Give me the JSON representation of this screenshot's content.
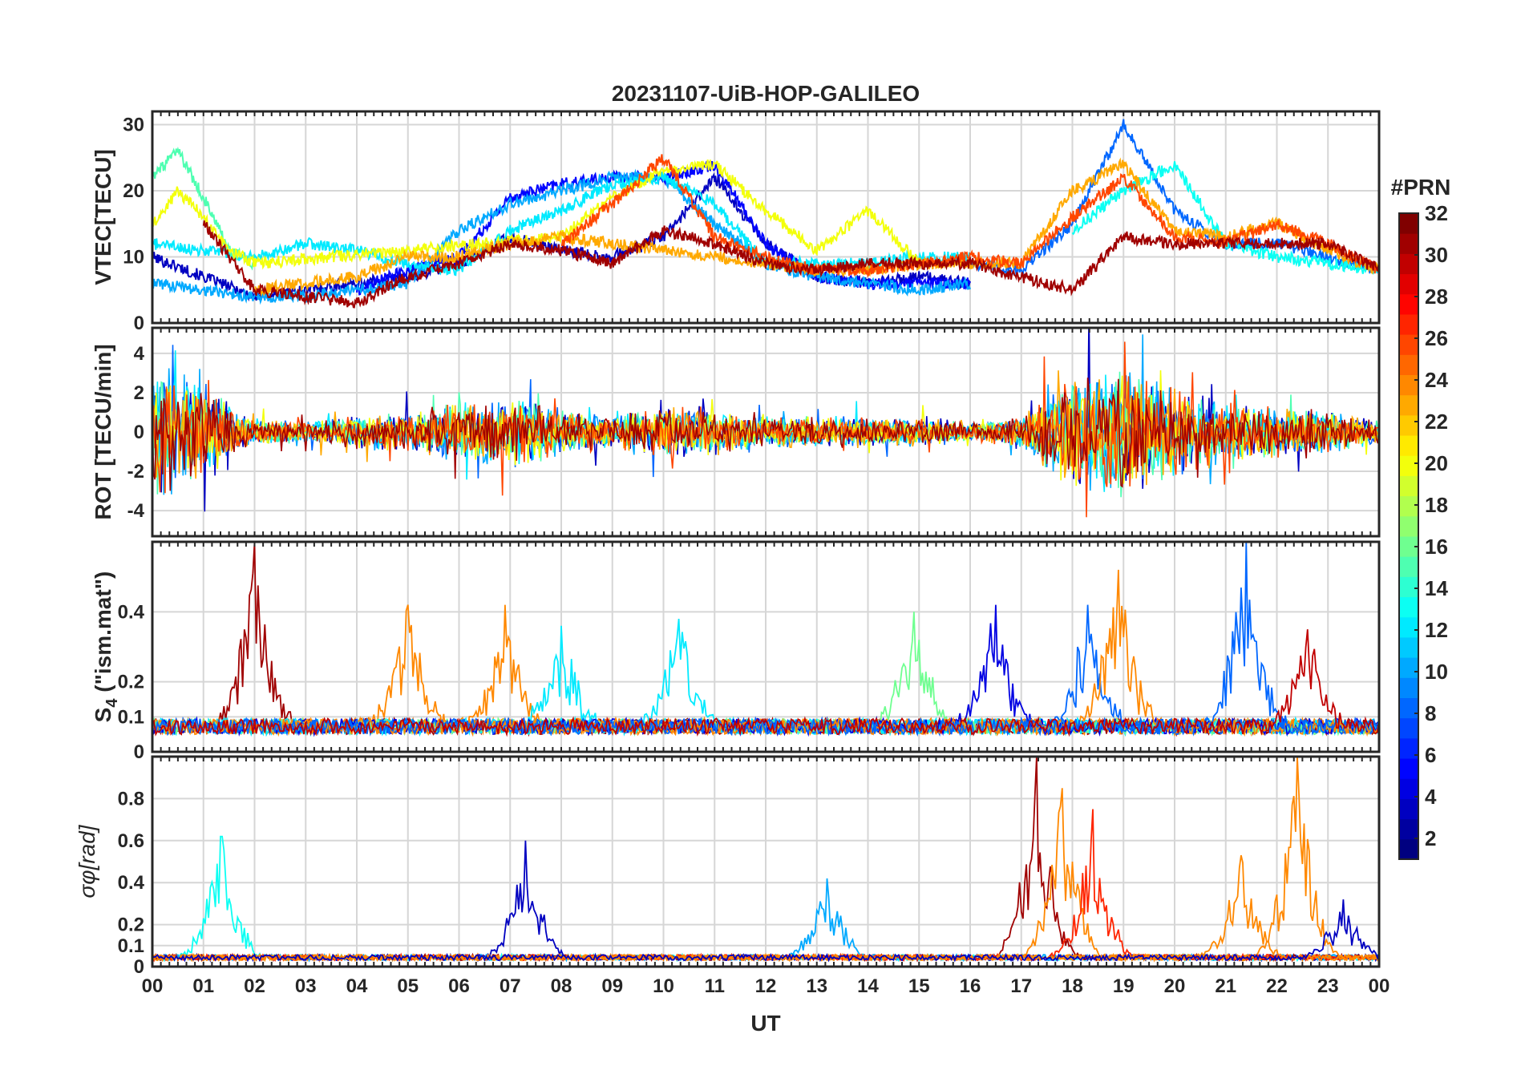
{
  "chart_data": {
    "type": "line",
    "title": "20231107-UiB-HOP-GALILEO",
    "xlabel": "UT",
    "x_tick_labels": [
      "00",
      "01",
      "02",
      "03",
      "04",
      "05",
      "06",
      "07",
      "08",
      "09",
      "10",
      "11",
      "12",
      "13",
      "14",
      "15",
      "16",
      "17",
      "18",
      "19",
      "20",
      "21",
      "22",
      "23",
      "00"
    ],
    "x_range_hours": [
      0,
      24
    ],
    "grid": true,
    "colorbar": {
      "title": "#PRN",
      "range": [
        1,
        32
      ],
      "tick_labels": [
        "2",
        "4",
        "6",
        "8",
        "10",
        "12",
        "14",
        "16",
        "18",
        "20",
        "22",
        "24",
        "26",
        "28",
        "30",
        "32"
      ],
      "colormap": "jet"
    },
    "panels": [
      {
        "id": "vtec",
        "ylabel": "VTEC[TECU]",
        "ylim": [
          0,
          32
        ],
        "yticks": [
          0,
          10,
          20,
          30
        ],
        "series": [
          {
            "prn": 3,
            "hours": [
              0,
              1,
              2,
              3,
              4,
              5,
              6,
              7,
              8,
              9,
              10,
              11,
              12,
              13,
              14,
              15,
              16
            ],
            "values": [
              10,
              7,
              4,
              5,
              6,
              7,
              9,
              13,
              11,
              10,
              13,
              22,
              12,
              7,
              6,
              7,
              6
            ]
          },
          {
            "prn": 5,
            "hours": [
              4,
              5,
              6,
              7,
              8,
              9,
              10,
              11,
              12,
              13,
              14,
              15,
              16
            ],
            "values": [
              5,
              8,
              10,
              19,
              21,
              22,
              22,
              24,
              12,
              7,
              6,
              6,
              6
            ]
          },
          {
            "prn": 8,
            "hours": [
              16,
              17,
              18,
              19,
              20,
              21,
              22,
              23,
              24
            ],
            "values": [
              9,
              8,
              15,
              30,
              17,
              12,
              12,
              10,
              8
            ]
          },
          {
            "prn": 10,
            "hours": [
              0,
              1,
              2,
              3,
              4,
              5,
              6,
              7,
              8,
              9,
              10,
              11,
              12,
              13,
              14,
              15,
              16
            ],
            "values": [
              6,
              5,
              4,
              4,
              5,
              6,
              14,
              18,
              20,
              22,
              22,
              15,
              9,
              7,
              6,
              5,
              6
            ]
          },
          {
            "prn": 12,
            "hours": [
              0,
              1,
              2,
              3,
              4,
              5,
              6,
              7,
              8,
              9,
              10,
              11,
              12,
              13,
              14,
              15,
              16
            ],
            "values": [
              12,
              11,
              10,
              12,
              11,
              9,
              8,
              14,
              17,
              21,
              22,
              18,
              9,
              9,
              9,
              10,
              10
            ]
          },
          {
            "prn": 13,
            "hours": [
              18,
              19,
              20,
              21,
              22,
              23,
              24
            ],
            "values": [
              14,
              20,
              24,
              12,
              10,
              9,
              8
            ]
          },
          {
            "prn": 15,
            "hours": [
              0,
              0.5,
              1,
              1.5,
              2
            ],
            "values": [
              22,
              26,
              19,
              11,
              9
            ]
          },
          {
            "prn": 20,
            "hours": [
              0,
              0.5,
              1,
              1.5,
              2,
              8,
              9,
              10,
              11,
              12,
              13,
              14,
              15
            ],
            "values": [
              15,
              20,
              16,
              11,
              9,
              13,
              19,
              23,
              24,
              17,
              11,
              17,
              9
            ]
          },
          {
            "prn": 23,
            "hours": [
              2,
              3,
              4,
              5,
              6,
              7,
              8,
              9,
              10,
              11,
              12,
              13,
              14,
              15,
              16,
              17,
              18,
              19,
              20,
              21,
              22,
              23,
              24
            ],
            "values": [
              5,
              6,
              7,
              10,
              10,
              12,
              13,
              12,
              11,
              10,
              9,
              8,
              8,
              9,
              9,
              9,
              20,
              24,
              14,
              13,
              15,
              11,
              8
            ]
          },
          {
            "prn": 26,
            "hours": [
              8,
              9,
              10,
              11,
              12,
              13,
              14,
              15,
              16,
              17,
              18,
              19,
              20,
              21,
              22,
              23,
              24
            ],
            "values": [
              12,
              18,
              25,
              13,
              10,
              8,
              8,
              9,
              10,
              9,
              16,
              22,
              13,
              12,
              15,
              12,
              8
            ]
          },
          {
            "prn": 31,
            "hours": [
              1,
              2,
              3,
              4,
              5,
              6,
              7,
              8,
              9,
              10,
              11,
              12,
              13,
              14,
              15,
              16,
              17,
              18,
              19,
              20,
              21,
              22,
              23,
              24
            ],
            "values": [
              15,
              5,
              4,
              3,
              7,
              9,
              12,
              11,
              9,
              14,
              12,
              9,
              8,
              9,
              9,
              9,
              7,
              5,
              13,
              12,
              12,
              12,
              12,
              8
            ]
          }
        ]
      },
      {
        "id": "rot",
        "ylabel": "ROT [TECU/min]",
        "ylim": [
          -5.3,
          5.3
        ],
        "yticks": [
          -4,
          -2,
          0,
          2,
          4
        ],
        "activity_hours": [
          0,
          1,
          2,
          3,
          4,
          5,
          6,
          7,
          8,
          9,
          10,
          11,
          12,
          13,
          14,
          15,
          16,
          17,
          18,
          19,
          20,
          21,
          22,
          23,
          24
        ],
        "activity_amplitude": [
          3.8,
          2.6,
          0.7,
          0.6,
          0.9,
          1.1,
          1.6,
          1.9,
          1.3,
          0.8,
          1.4,
          1.2,
          0.8,
          0.9,
          0.8,
          0.8,
          0.5,
          0.9,
          3.2,
          3.6,
          2.3,
          1.6,
          1.4,
          1.2,
          0.6
        ],
        "series": [
          {
            "prn": 3
          },
          {
            "prn": 8
          },
          {
            "prn": 10
          },
          {
            "prn": 12
          },
          {
            "prn": 15
          },
          {
            "prn": 20
          },
          {
            "prn": 23
          },
          {
            "prn": 26
          },
          {
            "prn": 31
          }
        ]
      },
      {
        "id": "s4",
        "ylabel": "S4 (\"ism.mat\")",
        "ylabel_main": "S",
        "ylabel_sub": "4",
        "ylabel_rest": " (\"ism.mat\")",
        "ylim": [
          0,
          0.6
        ],
        "yticks": [
          0,
          0.1,
          0.2,
          0.4
        ],
        "ytick_labels": [
          "0",
          "0.1",
          "0.2",
          "0.4"
        ],
        "peaks": [
          {
            "prn": 31,
            "hour": 2.0,
            "value": 0.6
          },
          {
            "prn": 24,
            "hour": 5.0,
            "value": 0.42
          },
          {
            "prn": 24,
            "hour": 6.9,
            "value": 0.42
          },
          {
            "prn": 12,
            "hour": 8.0,
            "value": 0.36
          },
          {
            "prn": 12,
            "hour": 10.3,
            "value": 0.38
          },
          {
            "prn": 16,
            "hour": 14.9,
            "value": 0.4
          },
          {
            "prn": 4,
            "hour": 16.5,
            "value": 0.42
          },
          {
            "prn": 8,
            "hour": 18.3,
            "value": 0.42
          },
          {
            "prn": 24,
            "hour": 18.9,
            "value": 0.52
          },
          {
            "prn": 8,
            "hour": 21.4,
            "value": 0.6
          },
          {
            "prn": 30,
            "hour": 22.6,
            "value": 0.35
          }
        ]
      },
      {
        "id": "sigma_phi",
        "ylabel": "σφ[rad]",
        "ylim": [
          0,
          1.0
        ],
        "yticks": [
          0,
          0.1,
          0.2,
          0.4,
          0.6,
          0.8
        ],
        "ytick_labels": [
          "0",
          "0.1",
          "0.2",
          "0.4",
          "0.6",
          "0.8"
        ],
        "peaks": [
          {
            "prn": 13,
            "hour": 1.35,
            "value": 0.62
          },
          {
            "prn": 3,
            "hour": 7.3,
            "value": 0.6
          },
          {
            "prn": 10,
            "hour": 13.2,
            "value": 0.42
          },
          {
            "prn": 31,
            "hour": 17.3,
            "value": 1.0
          },
          {
            "prn": 24,
            "hour": 17.8,
            "value": 0.85
          },
          {
            "prn": 27,
            "hour": 18.4,
            "value": 0.75
          },
          {
            "prn": 24,
            "hour": 21.3,
            "value": 0.53
          },
          {
            "prn": 24,
            "hour": 22.4,
            "value": 1.0
          },
          {
            "prn": 3,
            "hour": 23.3,
            "value": 0.32
          }
        ]
      }
    ]
  }
}
